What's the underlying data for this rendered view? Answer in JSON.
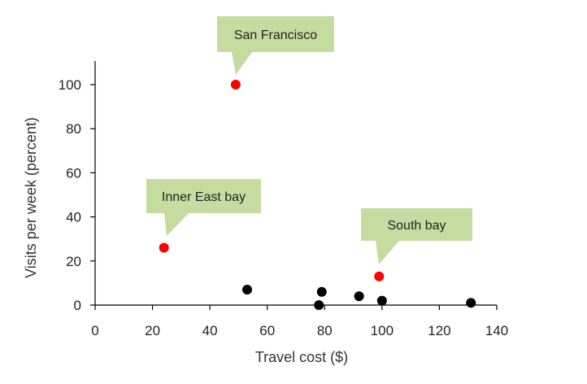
{
  "chart_data": {
    "type": "scatter",
    "xlabel": "Travel cost ($)",
    "ylabel": "Visits per week (percent)",
    "xlim": [
      0,
      140
    ],
    "ylim": [
      0,
      110
    ],
    "xticks": [
      0,
      20,
      40,
      60,
      80,
      100,
      120,
      140
    ],
    "yticks": [
      0,
      20,
      40,
      60,
      80,
      100
    ],
    "grid": false,
    "colors": {
      "highlight": "#ff0000",
      "default": "#000000",
      "callout": "#c5dba0"
    },
    "points": [
      {
        "x": 49,
        "y": 100,
        "highlight": true,
        "label": "San Francisco"
      },
      {
        "x": 24,
        "y": 26,
        "highlight": true,
        "label": "Inner East bay"
      },
      {
        "x": 99,
        "y": 13,
        "highlight": true,
        "label": "South bay"
      },
      {
        "x": 53,
        "y": 7,
        "highlight": false
      },
      {
        "x": 79,
        "y": 6,
        "highlight": false
      },
      {
        "x": 78,
        "y": 0,
        "highlight": false
      },
      {
        "x": 92,
        "y": 4,
        "highlight": false
      },
      {
        "x": 100,
        "y": 2,
        "highlight": false
      },
      {
        "x": 131,
        "y": 1,
        "highlight": false
      }
    ]
  }
}
